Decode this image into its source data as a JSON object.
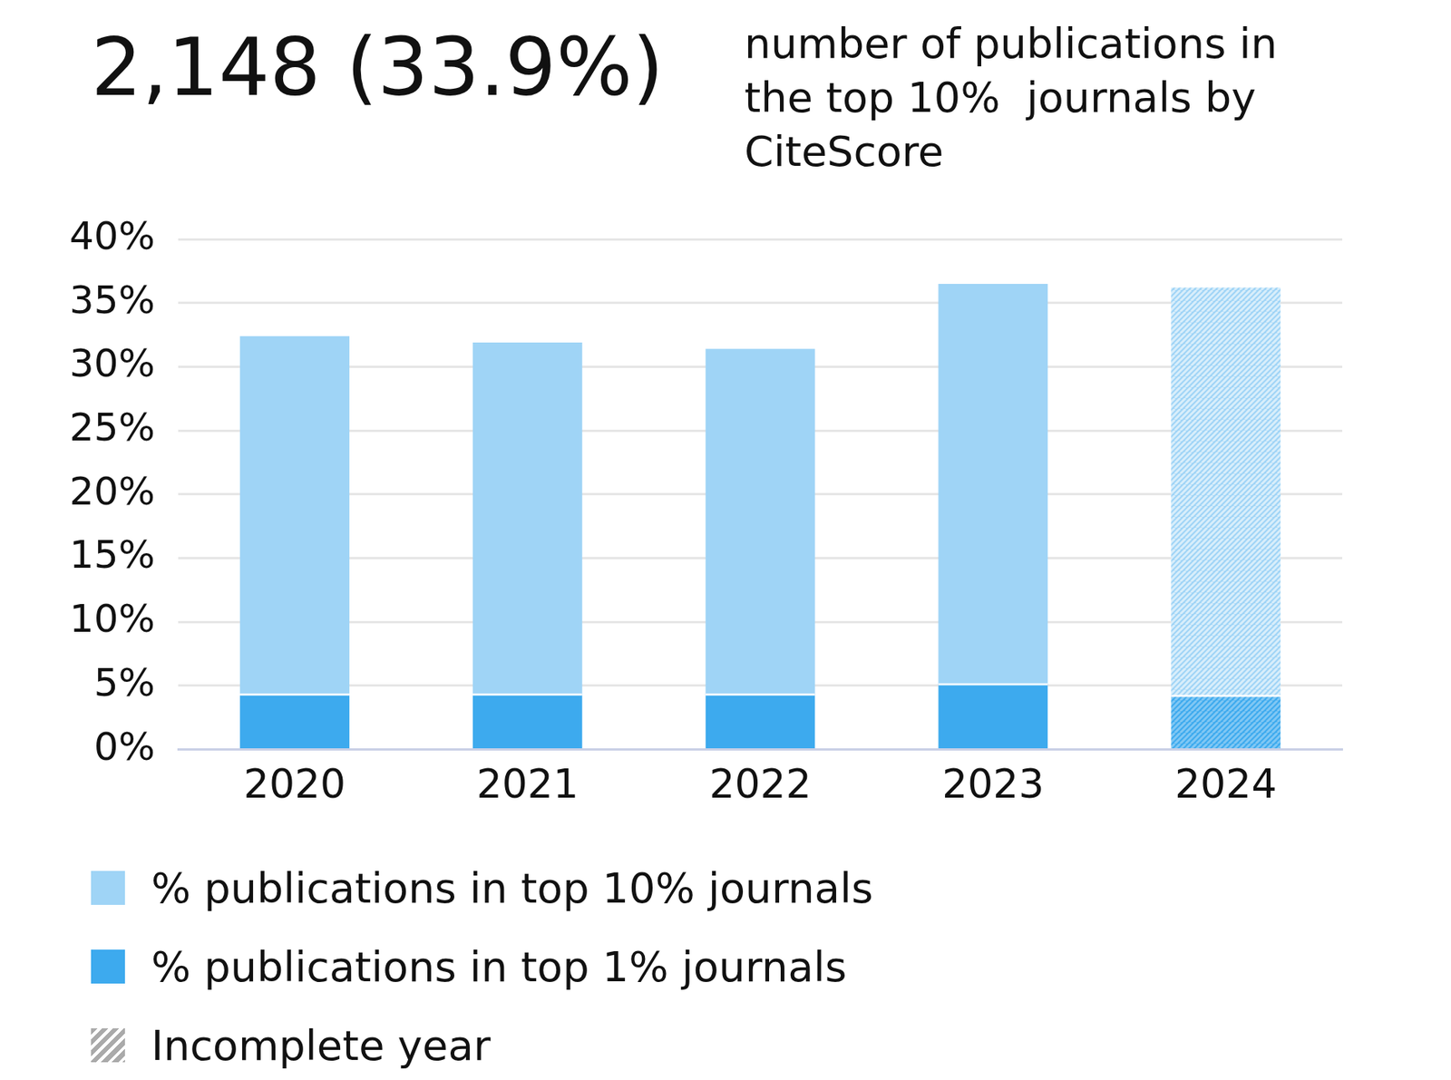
{
  "chart_data": {
    "type": "bar",
    "title": "2,148 (33.9%)",
    "subtitle": "number of publications in the top 10%  journals by CiteScore",
    "categories": [
      "2020",
      "2021",
      "2022",
      "2023",
      "2024"
    ],
    "series": [
      {
        "name": "% publications in top 10% journals",
        "color": "#9fd4f6",
        "values": [
          32.4,
          31.9,
          31.4,
          36.5,
          36.2
        ]
      },
      {
        "name": "% publications in top 1% journals",
        "color": "#3daaee",
        "values": [
          4.4,
          4.4,
          4.4,
          5.2,
          4.3
        ]
      }
    ],
    "incomplete": {
      "label": "Incomplete year",
      "categories": [
        "2024"
      ],
      "color": "#aaaaaa"
    },
    "ylim": [
      0,
      40
    ],
    "yticks": [
      {
        "value": 0,
        "label": "0%"
      },
      {
        "value": 5,
        "label": "5%"
      },
      {
        "value": 10,
        "label": "10%"
      },
      {
        "value": 15,
        "label": "15%"
      },
      {
        "value": 20,
        "label": "20%"
      },
      {
        "value": 25,
        "label": "25%"
      },
      {
        "value": 30,
        "label": "30%"
      },
      {
        "value": 35,
        "label": "35%"
      },
      {
        "value": 40,
        "label": "40%"
      }
    ],
    "grid": true,
    "stacked": false
  }
}
